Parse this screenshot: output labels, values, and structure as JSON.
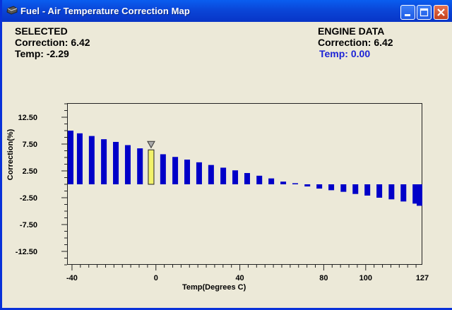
{
  "window": {
    "title": "Fuel - Air Temperature Correction Map"
  },
  "selected": {
    "heading": "SELECTED",
    "correction_text": "Correction: 6.42",
    "temp_text": "Temp: -2.29"
  },
  "engine": {
    "heading": "ENGINE DATA",
    "correction_text": "Correction: 6.42",
    "temp_text": "Temp: 0.00"
  },
  "colors": {
    "bar": "#0000c8",
    "selected_bar": "#f2f26a",
    "engine_temp_text": "#1c23d6",
    "titlebar": "#0a4fe0"
  },
  "chart_data": {
    "type": "bar",
    "title": "",
    "xlabel": "Temp(Degrees C)",
    "ylabel": "Correction(%)",
    "ylim": [
      -15,
      15
    ],
    "xlim": [
      -42,
      127
    ],
    "y_tick_labels": [
      "12.50",
      "7.50",
      "2.50",
      "-2.50",
      "-7.50",
      "-12.50"
    ],
    "y_ticks": [
      12.5,
      7.5,
      2.5,
      -2.5,
      -7.5,
      -12.5
    ],
    "x_tick_labels": [
      "-40",
      "0",
      "40",
      "80",
      "100",
      "127"
    ],
    "x_ticks": [
      -40,
      0,
      40,
      80,
      100,
      127
    ],
    "x": [
      -42,
      -36.3,
      -30.6,
      -24.8,
      -19.1,
      -13.4,
      -7.6,
      -2.29,
      3.4,
      9.2,
      14.9,
      20.6,
      26.3,
      32.1,
      37.8,
      43.5,
      49.3,
      55.0,
      60.7,
      66.4,
      72.2,
      77.9,
      83.6,
      89.4,
      95.1,
      100.8,
      106.5,
      112.3,
      118.0,
      123.7,
      127
    ],
    "values": [
      10.0,
      9.5,
      9.0,
      8.4,
      7.9,
      7.3,
      6.7,
      6.42,
      5.6,
      5.1,
      4.6,
      4.1,
      3.6,
      3.1,
      2.6,
      2.1,
      1.6,
      1.1,
      0.5,
      0.2,
      -0.4,
      -0.8,
      -1.1,
      -1.4,
      -1.8,
      -2.1,
      -2.5,
      -2.8,
      -3.2,
      -3.6,
      -4.0
    ],
    "selected_index": 7,
    "selected_marker": "triangle-down"
  }
}
